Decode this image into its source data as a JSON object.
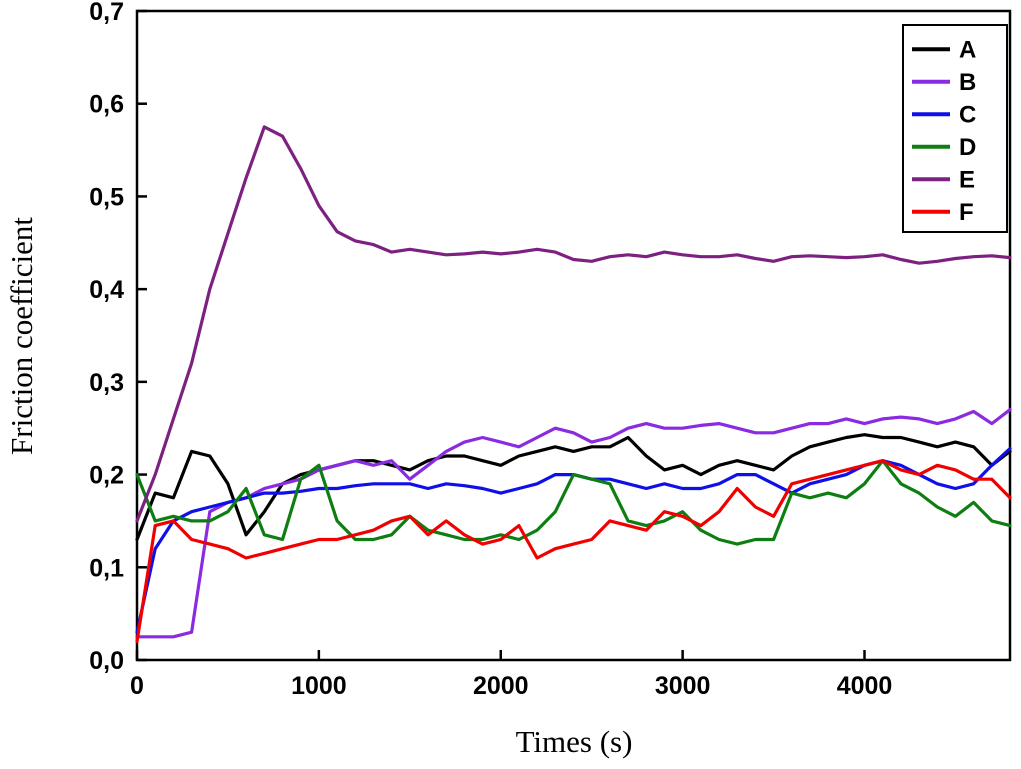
{
  "chart_data": {
    "type": "line",
    "title": "",
    "xlabel": "Times (s)",
    "ylabel": "Friction coefficient",
    "xlim": [
      0,
      4800
    ],
    "ylim": [
      0.0,
      0.7
    ],
    "x_ticks": [
      0,
      1000,
      2000,
      3000,
      4000
    ],
    "x_tick_labels": [
      "0",
      "1000",
      "2000",
      "3000",
      "4000"
    ],
    "y_ticks": [
      0.0,
      0.1,
      0.2,
      0.3,
      0.4,
      0.5,
      0.6,
      0.7
    ],
    "y_tick_labels": [
      "0,0",
      "0,1",
      "0,2",
      "0,3",
      "0,4",
      "0,5",
      "0,6",
      "0,7"
    ],
    "decimal_separator": ",",
    "grid": false,
    "legend_position": "top-right",
    "frame_color": "#000000",
    "x": [
      0,
      100,
      200,
      300,
      400,
      500,
      600,
      700,
      800,
      900,
      1000,
      1100,
      1200,
      1300,
      1400,
      1500,
      1600,
      1700,
      1800,
      1900,
      2000,
      2100,
      2200,
      2300,
      2400,
      2500,
      2600,
      2700,
      2800,
      2900,
      3000,
      3100,
      3200,
      3300,
      3400,
      3500,
      3600,
      3700,
      3800,
      3900,
      4000,
      4100,
      4200,
      4300,
      4400,
      4500,
      4600,
      4700,
      4800
    ],
    "series": [
      {
        "name": "A",
        "color": "#000000",
        "values": [
          0.13,
          0.18,
          0.175,
          0.225,
          0.22,
          0.19,
          0.135,
          0.16,
          0.19,
          0.2,
          0.205,
          0.21,
          0.215,
          0.215,
          0.21,
          0.205,
          0.215,
          0.22,
          0.22,
          0.215,
          0.21,
          0.22,
          0.225,
          0.23,
          0.225,
          0.23,
          0.23,
          0.24,
          0.22,
          0.205,
          0.21,
          0.2,
          0.21,
          0.215,
          0.21,
          0.205,
          0.22,
          0.23,
          0.235,
          0.24,
          0.243,
          0.24,
          0.24,
          0.235,
          0.23,
          0.235,
          0.23,
          0.21,
          0.225
        ]
      },
      {
        "name": "B",
        "color": "#8A2BE2",
        "values": [
          0.025,
          0.025,
          0.025,
          0.03,
          0.16,
          0.17,
          0.175,
          0.185,
          0.19,
          0.195,
          0.205,
          0.21,
          0.215,
          0.21,
          0.215,
          0.195,
          0.21,
          0.225,
          0.235,
          0.24,
          0.235,
          0.23,
          0.24,
          0.25,
          0.245,
          0.235,
          0.24,
          0.25,
          0.255,
          0.25,
          0.25,
          0.253,
          0.255,
          0.25,
          0.245,
          0.245,
          0.25,
          0.255,
          0.255,
          0.26,
          0.255,
          0.26,
          0.262,
          0.26,
          0.255,
          0.26,
          0.268,
          0.255,
          0.27
        ]
      },
      {
        "name": "C",
        "color": "#0F0FE8",
        "values": [
          0.03,
          0.12,
          0.15,
          0.16,
          0.165,
          0.17,
          0.175,
          0.18,
          0.18,
          0.182,
          0.185,
          0.185,
          0.188,
          0.19,
          0.19,
          0.19,
          0.185,
          0.19,
          0.188,
          0.185,
          0.18,
          0.185,
          0.19,
          0.2,
          0.2,
          0.195,
          0.195,
          0.19,
          0.185,
          0.19,
          0.185,
          0.185,
          0.19,
          0.2,
          0.2,
          0.19,
          0.18,
          0.19,
          0.195,
          0.2,
          0.21,
          0.215,
          0.21,
          0.2,
          0.19,
          0.185,
          0.19,
          0.21,
          0.228
        ]
      },
      {
        "name": "D",
        "color": "#0E7E12",
        "values": [
          0.2,
          0.15,
          0.155,
          0.15,
          0.15,
          0.16,
          0.185,
          0.135,
          0.13,
          0.195,
          0.21,
          0.15,
          0.13,
          0.13,
          0.135,
          0.155,
          0.14,
          0.135,
          0.13,
          0.13,
          0.135,
          0.13,
          0.14,
          0.16,
          0.2,
          0.195,
          0.19,
          0.15,
          0.145,
          0.15,
          0.16,
          0.14,
          0.13,
          0.125,
          0.13,
          0.13,
          0.18,
          0.175,
          0.18,
          0.175,
          0.19,
          0.215,
          0.19,
          0.18,
          0.165,
          0.155,
          0.17,
          0.15,
          0.145
        ]
      },
      {
        "name": "E",
        "color": "#7D2181",
        "values": [
          0.15,
          0.2,
          0.26,
          0.32,
          0.4,
          0.46,
          0.52,
          0.575,
          0.565,
          0.53,
          0.49,
          0.462,
          0.452,
          0.448,
          0.44,
          0.443,
          0.44,
          0.437,
          0.438,
          0.44,
          0.438,
          0.44,
          0.443,
          0.44,
          0.432,
          0.43,
          0.435,
          0.437,
          0.435,
          0.44,
          0.437,
          0.435,
          0.435,
          0.437,
          0.433,
          0.43,
          0.435,
          0.436,
          0.435,
          0.434,
          0.435,
          0.437,
          0.432,
          0.428,
          0.43,
          0.433,
          0.435,
          0.436,
          0.434
        ]
      },
      {
        "name": "F",
        "color": "#F00000",
        "values": [
          0.02,
          0.145,
          0.15,
          0.13,
          0.125,
          0.12,
          0.11,
          0.115,
          0.12,
          0.125,
          0.13,
          0.13,
          0.135,
          0.14,
          0.15,
          0.155,
          0.135,
          0.15,
          0.135,
          0.125,
          0.13,
          0.145,
          0.11,
          0.12,
          0.125,
          0.13,
          0.15,
          0.145,
          0.14,
          0.16,
          0.155,
          0.145,
          0.16,
          0.185,
          0.165,
          0.155,
          0.19,
          0.195,
          0.2,
          0.205,
          0.21,
          0.215,
          0.205,
          0.2,
          0.21,
          0.205,
          0.195,
          0.195,
          0.175
        ]
      }
    ]
  }
}
